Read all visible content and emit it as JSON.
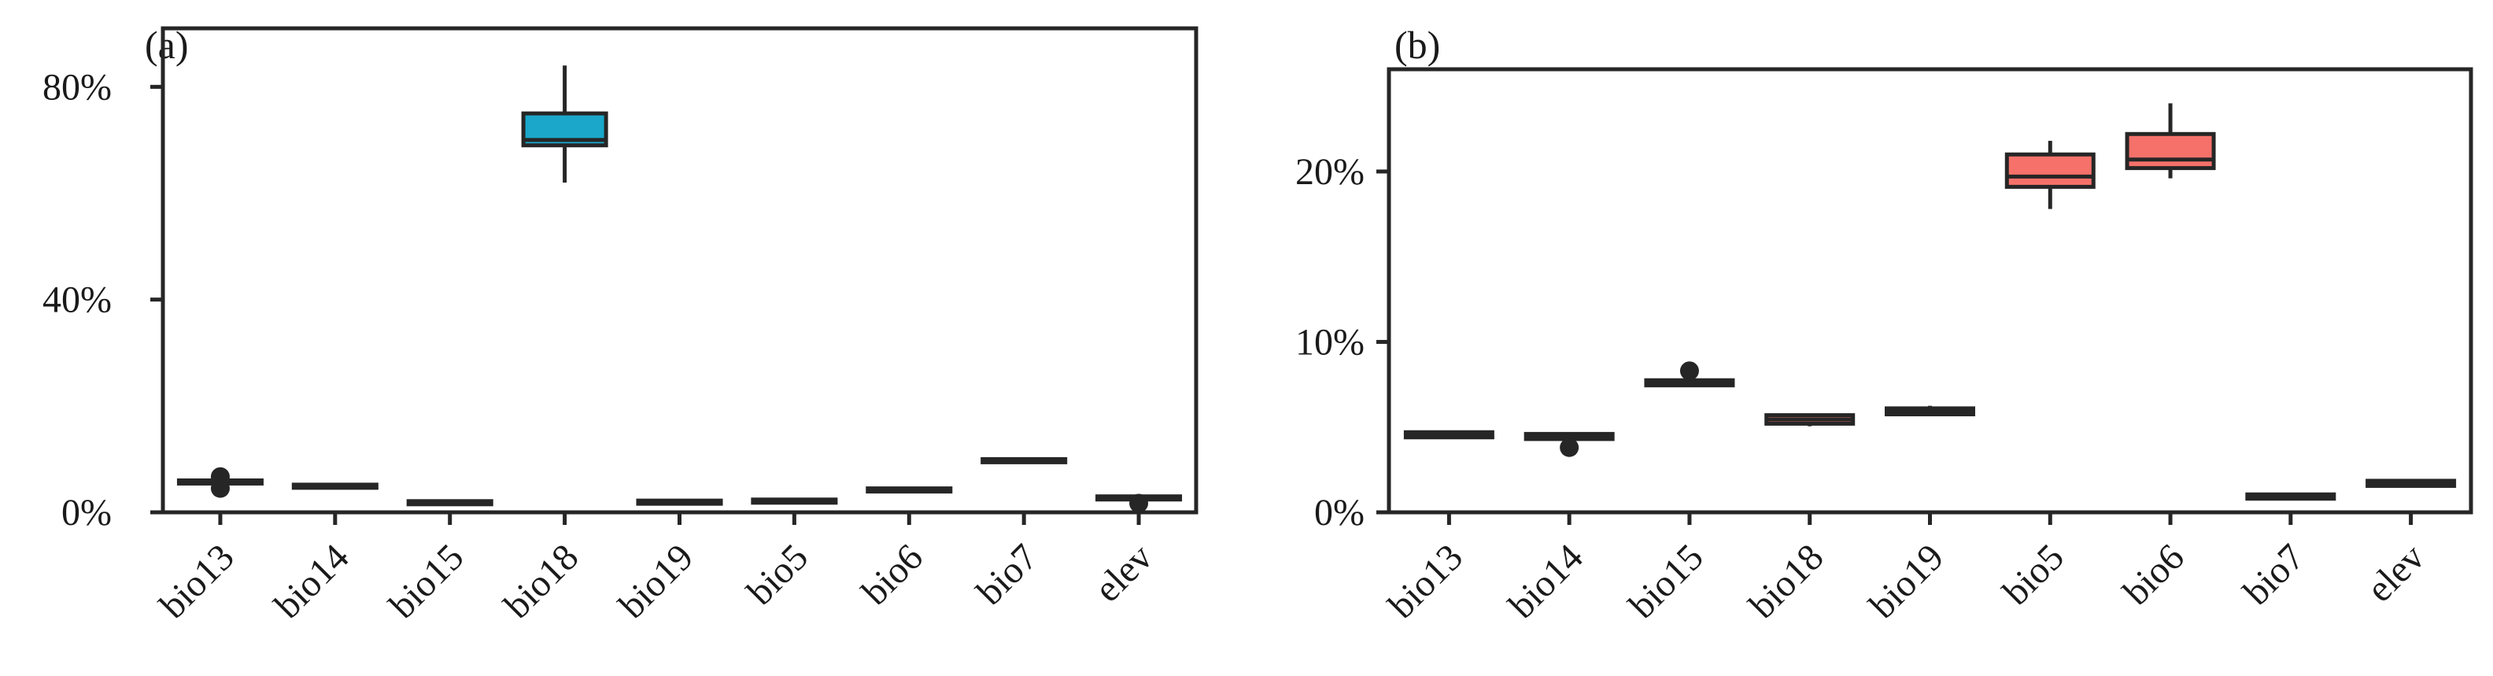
{
  "chart_data": [
    {
      "panel_label": "(a)",
      "type": "box",
      "categories": [
        "bio13",
        "bio14",
        "bio15",
        "bio18",
        "bio19",
        "bio5",
        "bio6",
        "bio7",
        "elev"
      ],
      "ylim": [
        0,
        0.91
      ],
      "yticks": [
        0,
        0.4,
        0.8
      ],
      "ytick_labels": [
        "0%",
        "40%",
        "80%"
      ],
      "box_color": "#1aa7c9",
      "boxes": [
        {
          "category": "bio13",
          "whislo": 0.056,
          "q1": 0.057,
          "med": 0.0585,
          "q3": 0.06,
          "whishi": 0.062,
          "outliers": [
            0.045,
            0.067
          ]
        },
        {
          "category": "bio14",
          "whislo": 0.049,
          "q1": 0.05,
          "med": 0.051,
          "q3": 0.052,
          "whishi": 0.053,
          "outliers": []
        },
        {
          "category": "bio15",
          "whislo": 0.018,
          "q1": 0.019,
          "med": 0.02,
          "q3": 0.021,
          "whishi": 0.022,
          "outliers": []
        },
        {
          "category": "bio18",
          "whislo": 0.62,
          "q1": 0.69,
          "med": 0.7,
          "q3": 0.75,
          "whishi": 0.84,
          "outliers": []
        },
        {
          "category": "bio19",
          "whislo": 0.019,
          "q1": 0.02,
          "med": 0.021,
          "q3": 0.022,
          "whishi": 0.023,
          "outliers": []
        },
        {
          "category": "bio5",
          "whislo": 0.021,
          "q1": 0.022,
          "med": 0.023,
          "q3": 0.024,
          "whishi": 0.025,
          "outliers": []
        },
        {
          "category": "bio6",
          "whislo": 0.042,
          "q1": 0.043,
          "med": 0.044,
          "q3": 0.045,
          "whishi": 0.046,
          "outliers": []
        },
        {
          "category": "bio7",
          "whislo": 0.097,
          "q1": 0.098,
          "med": 0.099,
          "q3": 0.1,
          "whishi": 0.101,
          "outliers": []
        },
        {
          "category": "elev",
          "whislo": 0.026,
          "q1": 0.027,
          "med": 0.028,
          "q3": 0.03,
          "whishi": 0.032,
          "outliers": [
            0.017
          ]
        }
      ]
    },
    {
      "panel_label": "(b)",
      "type": "box",
      "categories": [
        "bio13",
        "bio14",
        "bio15",
        "bio18",
        "bio19",
        "bio5",
        "bio6",
        "bio7",
        "elev"
      ],
      "ylim": [
        0,
        0.26
      ],
      "yticks": [
        0,
        0.1,
        0.2
      ],
      "ytick_labels": [
        "0%",
        "10%",
        "20%"
      ],
      "box_color": "#f5716a",
      "boxes": [
        {
          "category": "bio13",
          "whislo": 0.0435,
          "q1": 0.044,
          "med": 0.0455,
          "q3": 0.047,
          "whishi": 0.048,
          "outliers": []
        },
        {
          "category": "bio14",
          "whislo": 0.0425,
          "q1": 0.043,
          "med": 0.0445,
          "q3": 0.046,
          "whishi": 0.047,
          "outliers": [
            0.038
          ]
        },
        {
          "category": "bio15",
          "whislo": 0.074,
          "q1": 0.0745,
          "med": 0.076,
          "q3": 0.0775,
          "whishi": 0.078,
          "outliers": [
            0.083
          ]
        },
        {
          "category": "bio18",
          "whislo": 0.0505,
          "q1": 0.052,
          "med": 0.0545,
          "q3": 0.057,
          "whishi": 0.058,
          "outliers": []
        },
        {
          "category": "bio19",
          "whislo": 0.0565,
          "q1": 0.0575,
          "med": 0.059,
          "q3": 0.061,
          "whishi": 0.0625,
          "outliers": []
        },
        {
          "category": "bio5",
          "whislo": 0.178,
          "q1": 0.191,
          "med": 0.197,
          "q3": 0.21,
          "whishi": 0.218,
          "outliers": []
        },
        {
          "category": "bio6",
          "whislo": 0.196,
          "q1": 0.202,
          "med": 0.207,
          "q3": 0.222,
          "whishi": 0.24,
          "outliers": []
        },
        {
          "category": "bio7",
          "whislo": 0.0075,
          "q1": 0.008,
          "med": 0.009,
          "q3": 0.0105,
          "whishi": 0.011,
          "outliers": []
        },
        {
          "category": "elev",
          "whislo": 0.015,
          "q1": 0.0155,
          "med": 0.017,
          "q3": 0.0185,
          "whishi": 0.019,
          "outliers": []
        }
      ]
    }
  ]
}
